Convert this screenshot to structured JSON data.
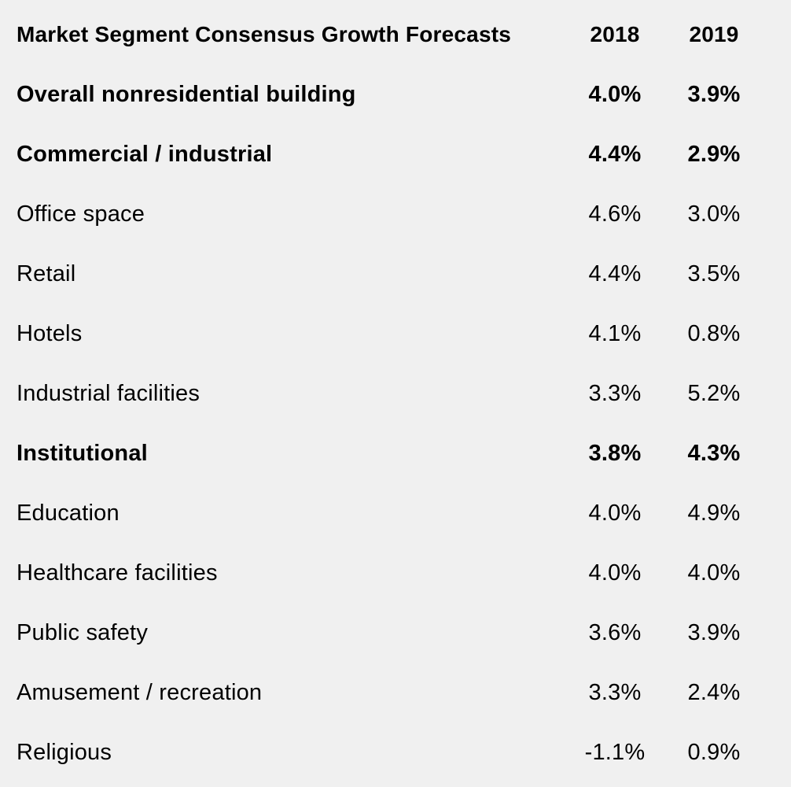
{
  "chart_data": {
    "type": "table",
    "title": "",
    "columns": [
      "Market  Segment Consensus Growth Forecasts",
      "2018",
      "2019"
    ],
    "rows": [
      {
        "segment": "Overall  nonresidential building",
        "y2018": "4.0%",
        "y2019": "3.9%",
        "bold": true
      },
      {
        "segment": "Commercial  / industrial",
        "y2018": "4.4%",
        "y2019": "2.9%",
        "bold": true
      },
      {
        "segment": "Office space",
        "y2018": "4.6%",
        "y2019": "3.0%",
        "bold": false
      },
      {
        "segment": "Retail",
        "y2018": "4.4%",
        "y2019": "3.5%",
        "bold": false
      },
      {
        "segment": "Hotels",
        "y2018": "4.1%",
        "y2019": "0.8%",
        "bold": false
      },
      {
        "segment": "Industrial facilities",
        "y2018": "3.3%",
        "y2019": "5.2%",
        "bold": false
      },
      {
        "segment": "Institutional",
        "y2018": "3.8%",
        "y2019": "4.3%",
        "bold": true
      },
      {
        "segment": "Education",
        "y2018": "4.0%",
        "y2019": "4.9%",
        "bold": false
      },
      {
        "segment": "Healthcare facilities",
        "y2018": "4.0%",
        "y2019": "4.0%",
        "bold": false
      },
      {
        "segment": "Public safety",
        "y2018": "3.6%",
        "y2019": "3.9%",
        "bold": false
      },
      {
        "segment": "Amusement / recreation",
        "y2018": "3.3%",
        "y2019": "2.4%",
        "bold": false
      },
      {
        "segment": "Religious",
        "y2018": "-1.1%",
        "y2019": "0.9%",
        "bold": false
      }
    ]
  },
  "colors": {
    "background": "#f0f0f0",
    "text": "#000000"
  }
}
